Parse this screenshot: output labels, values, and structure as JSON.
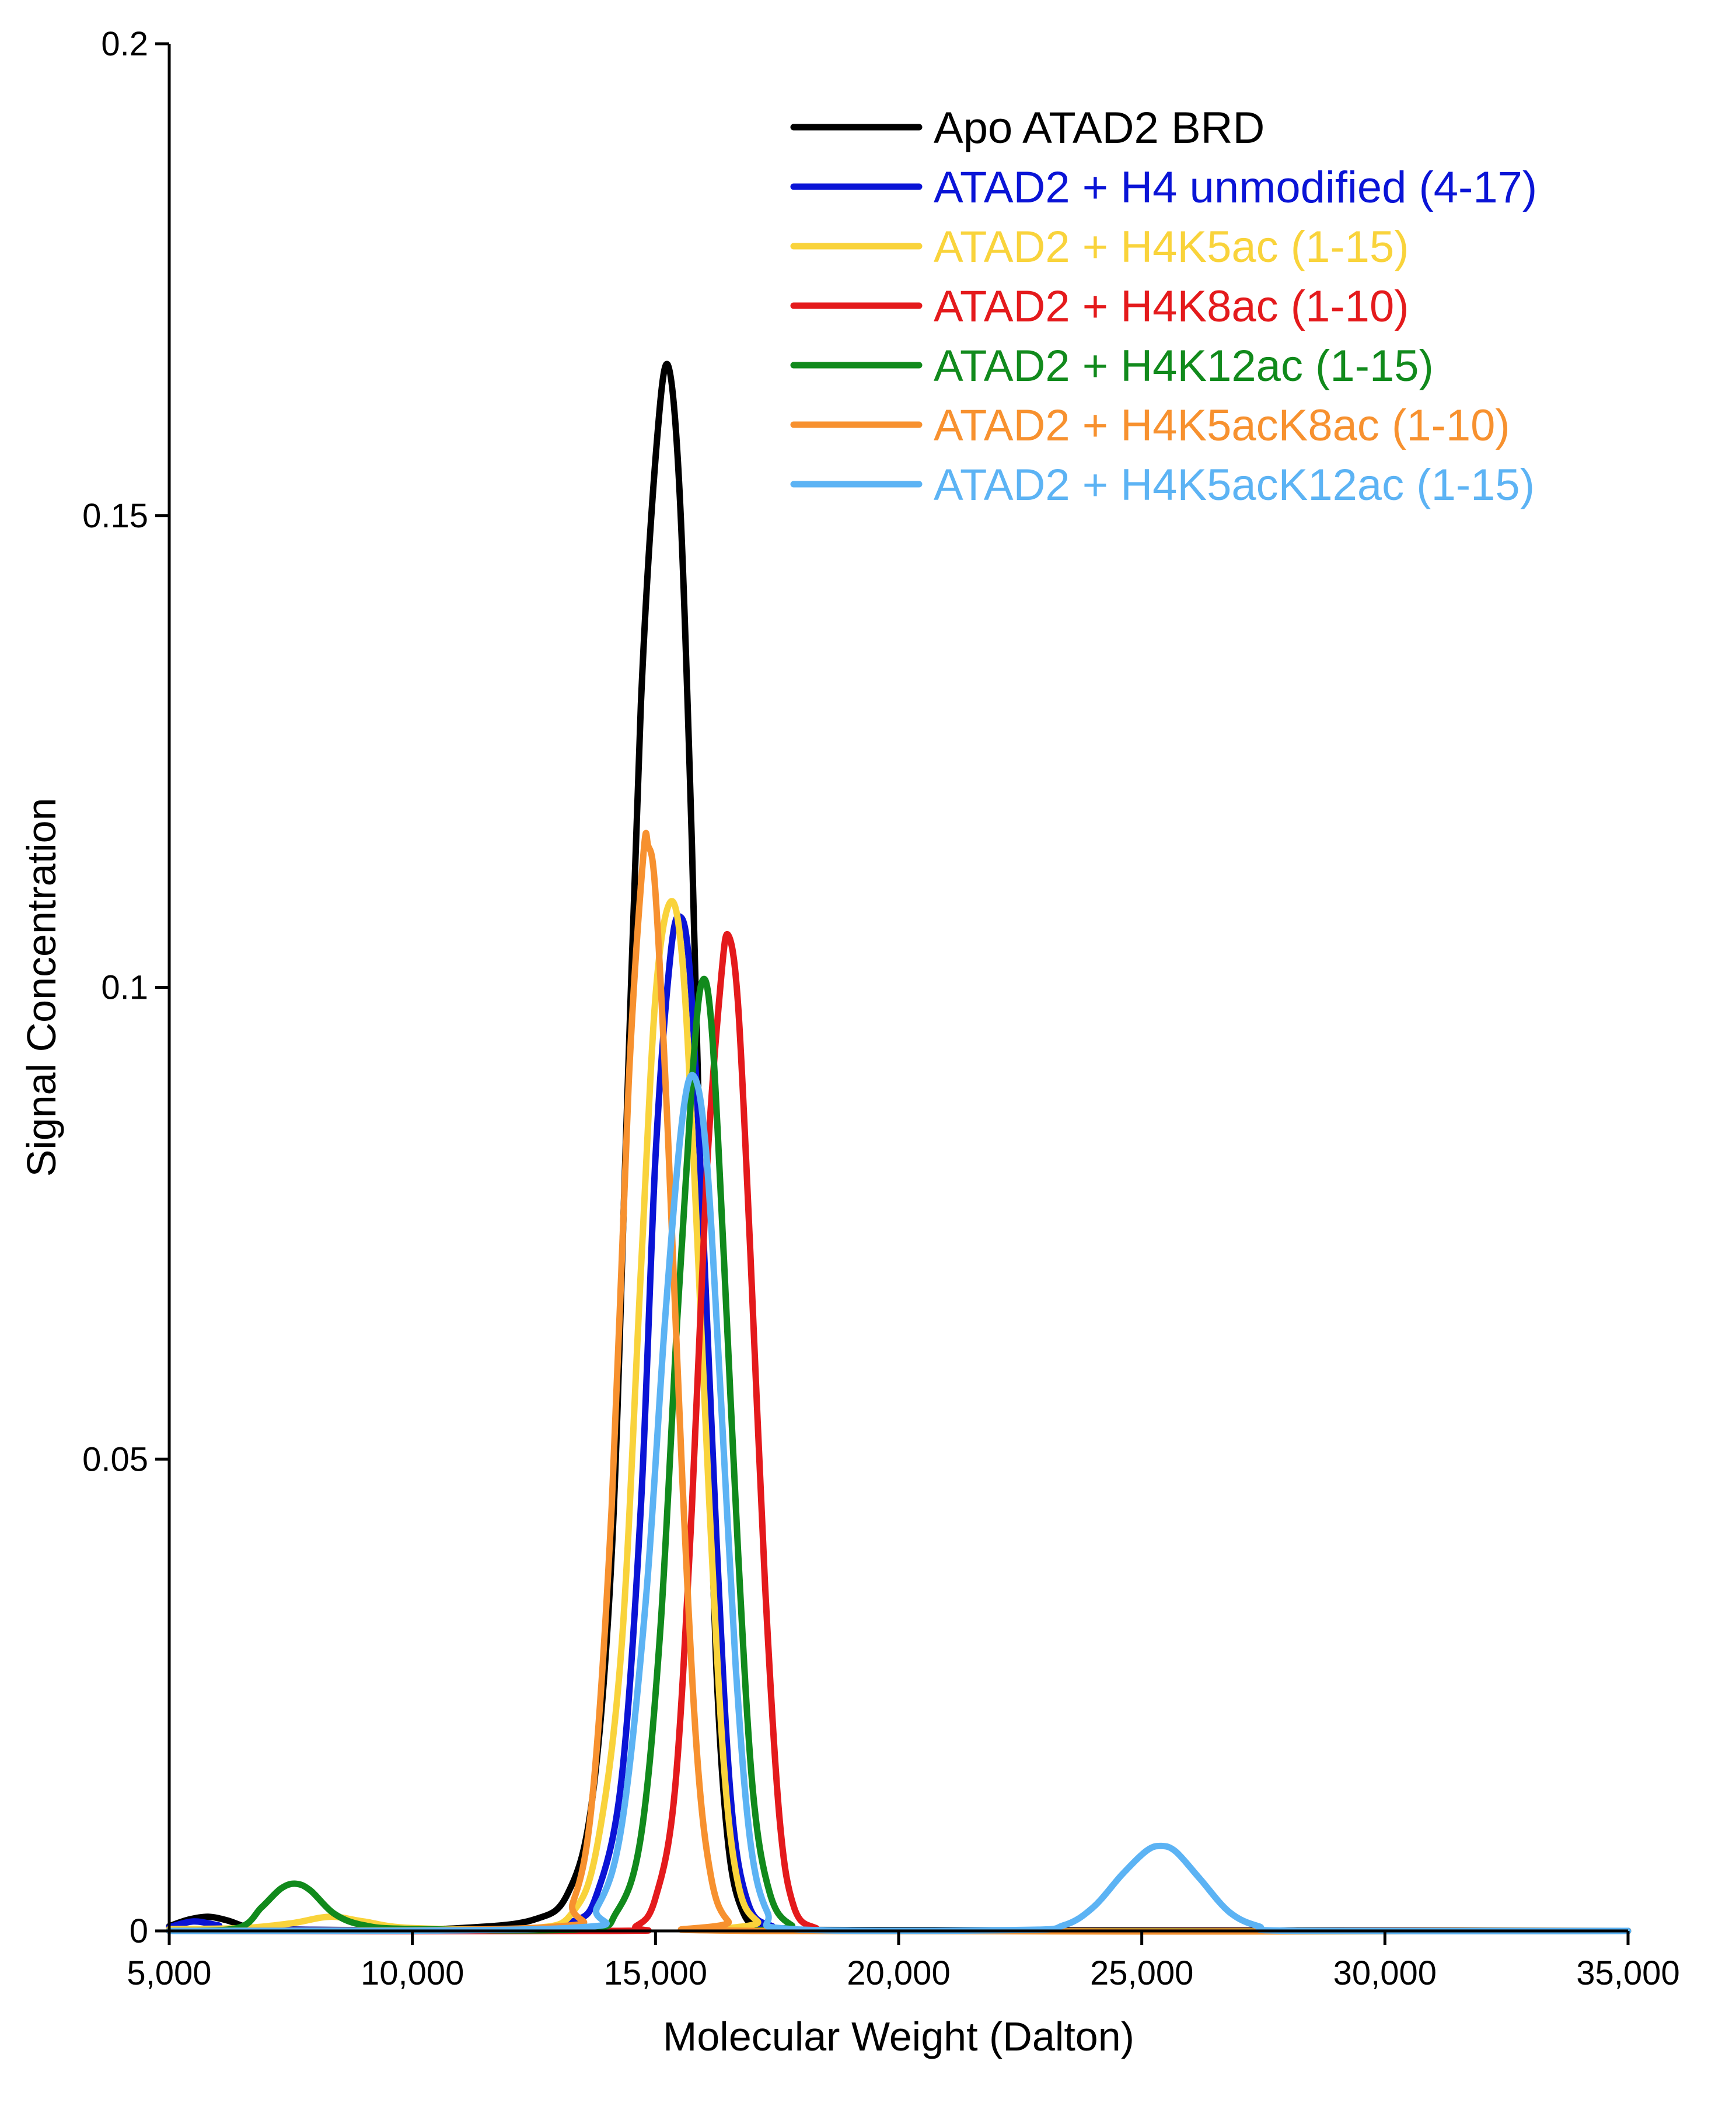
{
  "chart_data": {
    "type": "line",
    "xlabel": "Molecular Weight (Dalton)",
    "ylabel": "Signal Concentration",
    "xlim": [
      5000,
      35000
    ],
    "ylim": [
      0,
      0.2
    ],
    "x_ticks": [
      5000,
      10000,
      15000,
      20000,
      25000,
      30000,
      35000
    ],
    "x_tick_labels": [
      "5,000",
      "10,000",
      "15,000",
      "20,000",
      "25,000",
      "30,000",
      "35,000"
    ],
    "y_ticks": [
      0,
      0.05,
      0.1,
      0.15,
      0.2
    ],
    "y_tick_labels": [
      "0",
      "0.05",
      "0.1",
      "0.15",
      "0.2"
    ],
    "grid": false,
    "legend_position": "top-right",
    "series": [
      {
        "name": "Apo ATAD2 BRD",
        "color": "#000000",
        "points": [
          [
            5000,
            0.0005
          ],
          [
            5400,
            0.0012
          ],
          [
            5800,
            0.0015
          ],
          [
            6200,
            0.0011
          ],
          [
            6600,
            0.0004
          ],
          [
            7000,
            0.0002
          ],
          [
            9000,
            0.0001
          ],
          [
            11000,
            0.0003
          ],
          [
            12500,
            0.0012
          ],
          [
            13200,
            0.004
          ],
          [
            13700,
            0.014
          ],
          [
            14100,
            0.04
          ],
          [
            14400,
            0.085
          ],
          [
            14700,
            0.13
          ],
          [
            15000,
            0.156
          ],
          [
            15250,
            0.166
          ],
          [
            15500,
            0.152
          ],
          [
            15750,
            0.115
          ],
          [
            16000,
            0.065
          ],
          [
            16250,
            0.028
          ],
          [
            16500,
            0.009
          ],
          [
            16800,
            0.002
          ],
          [
            17200,
            0.0003
          ],
          [
            18000,
            0.0001
          ],
          [
            35000,
            0
          ]
        ]
      },
      {
        "name": "ATAD2 + H4 unmodified (4-17)",
        "color": "#0a14d6",
        "points": [
          [
            5000,
            0.0004
          ],
          [
            5500,
            0.001
          ],
          [
            6000,
            0.0006
          ],
          [
            6500,
            0.0002
          ],
          [
            12000,
            0.0001
          ],
          [
            13300,
            0.001
          ],
          [
            13800,
            0.004
          ],
          [
            14300,
            0.016
          ],
          [
            14700,
            0.045
          ],
          [
            15000,
            0.082
          ],
          [
            15300,
            0.103
          ],
          [
            15500,
            0.1075
          ],
          [
            15700,
            0.102
          ],
          [
            15950,
            0.078
          ],
          [
            16250,
            0.042
          ],
          [
            16550,
            0.014
          ],
          [
            16900,
            0.003
          ],
          [
            17400,
            0.0005
          ],
          [
            18200,
            0
          ],
          [
            35000,
            0
          ]
        ]
      },
      {
        "name": "ATAD2 + H4K5ac (1-15)",
        "color": "#f9d33b",
        "points": [
          [
            5000,
            0.0002
          ],
          [
            6500,
            0.0003
          ],
          [
            7500,
            0.0008
          ],
          [
            8300,
            0.0015
          ],
          [
            9000,
            0.001
          ],
          [
            10000,
            0.0003
          ],
          [
            12500,
            0.0003
          ],
          [
            13300,
            0.002
          ],
          [
            13800,
            0.009
          ],
          [
            14300,
            0.03
          ],
          [
            14700,
            0.07
          ],
          [
            15000,
            0.099
          ],
          [
            15300,
            0.109
          ],
          [
            15550,
            0.103
          ],
          [
            15800,
            0.08
          ],
          [
            16100,
            0.046
          ],
          [
            16400,
            0.018
          ],
          [
            16700,
            0.005
          ],
          [
            17100,
            0.001
          ],
          [
            17800,
            0
          ],
          [
            35000,
            0
          ]
        ]
      },
      {
        "name": "ATAD2 + H4K8ac (1-10)",
        "color": "#e41a1c",
        "points": [
          [
            5000,
            0
          ],
          [
            14000,
            0
          ],
          [
            14600,
            0.0005
          ],
          [
            15000,
            0.0035
          ],
          [
            15400,
            0.015
          ],
          [
            15750,
            0.045
          ],
          [
            16050,
            0.08
          ],
          [
            16350,
            0.101
          ],
          [
            16500,
            0.1055
          ],
          [
            16700,
            0.098
          ],
          [
            16950,
            0.072
          ],
          [
            17250,
            0.037
          ],
          [
            17550,
            0.012
          ],
          [
            17850,
            0.0025
          ],
          [
            18300,
            0.0003
          ],
          [
            19000,
            0
          ],
          [
            35000,
            0
          ]
        ]
      },
      {
        "name": "ATAD2 + H4K12ac (1-15)",
        "color": "#118a1c",
        "points": [
          [
            5000,
            0
          ],
          [
            6400,
            0.0003
          ],
          [
            6900,
            0.0025
          ],
          [
            7300,
            0.0045
          ],
          [
            7600,
            0.005
          ],
          [
            7900,
            0.0043
          ],
          [
            8400,
            0.0018
          ],
          [
            9000,
            0.0006
          ],
          [
            10000,
            0.0002
          ],
          [
            13500,
            0.0002
          ],
          [
            14200,
            0.002
          ],
          [
            14700,
            0.01
          ],
          [
            15100,
            0.032
          ],
          [
            15450,
            0.065
          ],
          [
            15750,
            0.09
          ],
          [
            15950,
            0.1005
          ],
          [
            16150,
            0.096
          ],
          [
            16400,
            0.072
          ],
          [
            16700,
            0.04
          ],
          [
            17000,
            0.015
          ],
          [
            17350,
            0.004
          ],
          [
            17800,
            0.0006
          ],
          [
            18500,
            0
          ],
          [
            35000,
            0
          ]
        ]
      },
      {
        "name": "ATAD2 + H4K5acK8ac (1-10)",
        "color": "#f7912f",
        "points": [
          [
            5000,
            0
          ],
          [
            12800,
            0.0004
          ],
          [
            13300,
            0.003
          ],
          [
            13700,
            0.014
          ],
          [
            14100,
            0.045
          ],
          [
            14450,
            0.09
          ],
          [
            14750,
            0.114
          ],
          [
            14850,
            0.115
          ],
          [
            15000,
            0.11
          ],
          [
            15250,
            0.085
          ],
          [
            15550,
            0.048
          ],
          [
            15850,
            0.019
          ],
          [
            16150,
            0.0055
          ],
          [
            16500,
            0.001
          ],
          [
            17000,
            0
          ],
          [
            35000,
            0
          ]
        ]
      },
      {
        "name": "ATAD2 + H4K5acK12ac (1-15)",
        "color": "#5cb3f4",
        "points": [
          [
            5000,
            0
          ],
          [
            13200,
            0.0003
          ],
          [
            13800,
            0.0025
          ],
          [
            14300,
            0.011
          ],
          [
            14800,
            0.035
          ],
          [
            15200,
            0.065
          ],
          [
            15550,
            0.086
          ],
          [
            15800,
            0.0905
          ],
          [
            16050,
            0.082
          ],
          [
            16350,
            0.056
          ],
          [
            16650,
            0.028
          ],
          [
            16950,
            0.0095
          ],
          [
            17300,
            0.002
          ],
          [
            17800,
            0.0002
          ],
          [
            22500,
            0.0001
          ],
          [
            23400,
            0.0006
          ],
          [
            24000,
            0.0025
          ],
          [
            24600,
            0.006
          ],
          [
            25100,
            0.0085
          ],
          [
            25400,
            0.009
          ],
          [
            25700,
            0.0084
          ],
          [
            26200,
            0.0055
          ],
          [
            26800,
            0.002
          ],
          [
            27400,
            0.0005
          ],
          [
            28200,
            0
          ],
          [
            35000,
            0
          ]
        ]
      }
    ]
  }
}
